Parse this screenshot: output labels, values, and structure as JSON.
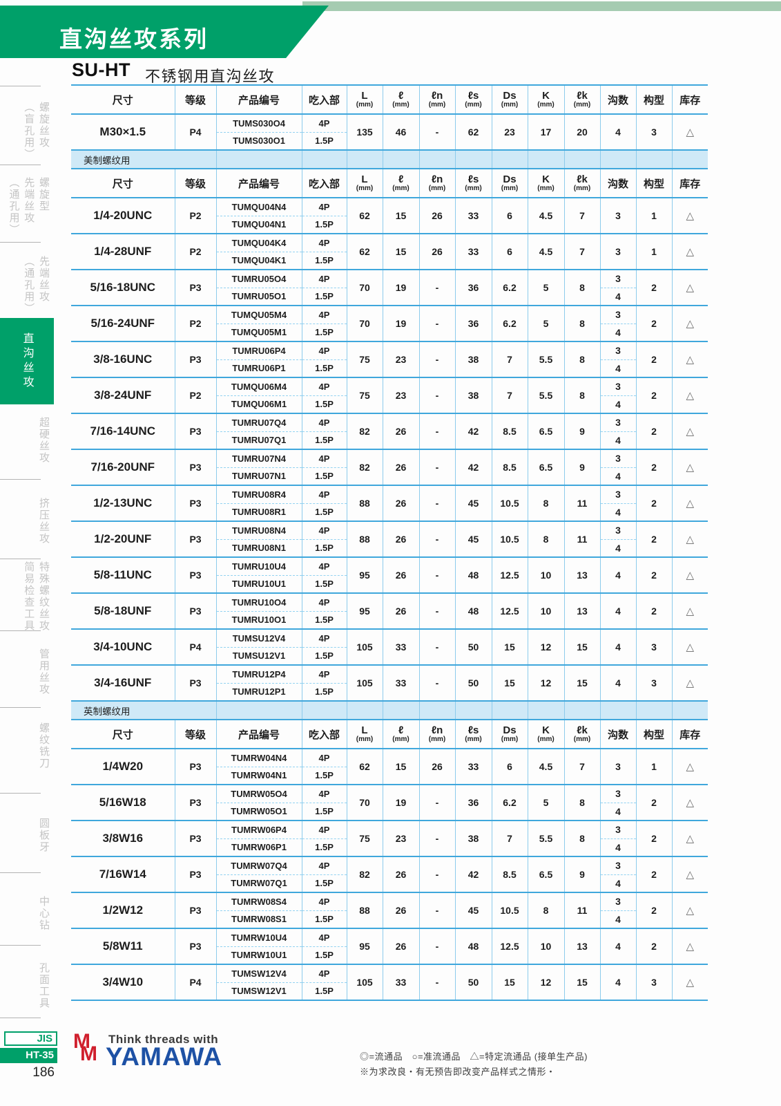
{
  "header": {
    "series_title": "直沟丝攻系列",
    "model_code": "SU-HT",
    "model_name": "不锈钢用直沟丝攻"
  },
  "sidebar": {
    "items": [
      {
        "id": "spiral-tap-blind",
        "lines": [
          "螺旋丝攻",
          "（盲孔用）"
        ],
        "active": false
      },
      {
        "id": "spiral-point-tap",
        "lines": [
          "螺旋型",
          "先端丝攻",
          "（通孔用）"
        ],
        "active": false
      },
      {
        "id": "point-tap",
        "lines": [
          "先端丝攻",
          "（通孔用）"
        ],
        "active": false
      },
      {
        "id": "straight-flute-tap",
        "lines": [
          "直沟丝攻"
        ],
        "active": true
      },
      {
        "id": "carbide-tap",
        "lines": [
          "超硬丝攻"
        ],
        "active": false
      },
      {
        "id": "forming-tap",
        "lines": [
          "挤压丝攻"
        ],
        "active": false
      },
      {
        "id": "special-thread-tools",
        "lines": [
          "特殊螺纹丝攻",
          "简易检查工具"
        ],
        "active": false
      },
      {
        "id": "pipe-tap",
        "lines": [
          "管用丝攻"
        ],
        "active": false
      },
      {
        "id": "thread-mill",
        "lines": [
          "螺纹铣刀"
        ],
        "active": false
      },
      {
        "id": "round-die",
        "lines": [
          "圆板牙"
        ],
        "active": false
      },
      {
        "id": "center-drill",
        "lines": [
          "中心钻"
        ],
        "active": false
      },
      {
        "id": "hole-tools",
        "lines": [
          "孔面工具"
        ],
        "active": false
      }
    ],
    "jis_label": "JIS",
    "ht_label": "HT-35",
    "page_number": "186"
  },
  "table": {
    "headers": {
      "size": "尺寸",
      "grade": "等级",
      "part_no": "产品编号",
      "chamfer": "吃入部",
      "dims": [
        {
          "sym": "L",
          "unit": "(mm)"
        },
        {
          "sym": "ℓ",
          "unit": "(mm)"
        },
        {
          "sym": "ℓn",
          "unit": "(mm)"
        },
        {
          "sym": "ℓs",
          "unit": "(mm)"
        },
        {
          "sym": "Ds",
          "unit": "(mm)"
        },
        {
          "sym": "K",
          "unit": "(mm)"
        },
        {
          "sym": "ℓk",
          "unit": "(mm)"
        }
      ],
      "flutes": "沟数",
      "form": "构型",
      "stock": "库存"
    },
    "sections": [
      {
        "band": null,
        "rows": [
          {
            "size": "M30×1.5",
            "grade": "P4",
            "codes": [
              "TUMS030O4",
              "TUMS030O1"
            ],
            "chamfer": [
              "4P",
              "1.5P"
            ],
            "dims": [
              "135",
              "46",
              "-",
              "62",
              "23",
              "17",
              "20"
            ],
            "flutes": [
              "4"
            ],
            "form": "3",
            "stock": "△"
          }
        ]
      },
      {
        "band": "美制螺纹用",
        "rows": [
          {
            "size": "1/4-20UNC",
            "grade": "P2",
            "codes": [
              "TUMQU04N4",
              "TUMQU04N1"
            ],
            "chamfer": [
              "4P",
              "1.5P"
            ],
            "dims": [
              "62",
              "15",
              "26",
              "33",
              "6",
              "4.5",
              "7"
            ],
            "flutes": [
              "3"
            ],
            "form": "1",
            "stock": "△"
          },
          {
            "size": "1/4-28UNF",
            "grade": "P2",
            "codes": [
              "TUMQU04K4",
              "TUMQU04K1"
            ],
            "chamfer": [
              "4P",
              "1.5P"
            ],
            "dims": [
              "62",
              "15",
              "26",
              "33",
              "6",
              "4.5",
              "7"
            ],
            "flutes": [
              "3"
            ],
            "form": "1",
            "stock": "△"
          },
          {
            "size": "5/16-18UNC",
            "grade": "P3",
            "codes": [
              "TUMRU05O4",
              "TUMRU05O1"
            ],
            "chamfer": [
              "4P",
              "1.5P"
            ],
            "dims": [
              "70",
              "19",
              "-",
              "36",
              "6.2",
              "5",
              "8"
            ],
            "flutes": [
              "3",
              "4"
            ],
            "form": "2",
            "stock": "△"
          },
          {
            "size": "5/16-24UNF",
            "grade": "P2",
            "codes": [
              "TUMQU05M4",
              "TUMQU05M1"
            ],
            "chamfer": [
              "4P",
              "1.5P"
            ],
            "dims": [
              "70",
              "19",
              "-",
              "36",
              "6.2",
              "5",
              "8"
            ],
            "flutes": [
              "3",
              "4"
            ],
            "form": "2",
            "stock": "△"
          },
          {
            "size": "3/8-16UNC",
            "grade": "P3",
            "codes": [
              "TUMRU06P4",
              "TUMRU06P1"
            ],
            "chamfer": [
              "4P",
              "1.5P"
            ],
            "dims": [
              "75",
              "23",
              "-",
              "38",
              "7",
              "5.5",
              "8"
            ],
            "flutes": [
              "3",
              "4"
            ],
            "form": "2",
            "stock": "△"
          },
          {
            "size": "3/8-24UNF",
            "grade": "P2",
            "codes": [
              "TUMQU06M4",
              "TUMQU06M1"
            ],
            "chamfer": [
              "4P",
              "1.5P"
            ],
            "dims": [
              "75",
              "23",
              "-",
              "38",
              "7",
              "5.5",
              "8"
            ],
            "flutes": [
              "3",
              "4"
            ],
            "form": "2",
            "stock": "△"
          },
          {
            "size": "7/16-14UNC",
            "grade": "P3",
            "codes": [
              "TUMRU07Q4",
              "TUMRU07Q1"
            ],
            "chamfer": [
              "4P",
              "1.5P"
            ],
            "dims": [
              "82",
              "26",
              "-",
              "42",
              "8.5",
              "6.5",
              "9"
            ],
            "flutes": [
              "3",
              "4"
            ],
            "form": "2",
            "stock": "△"
          },
          {
            "size": "7/16-20UNF",
            "grade": "P3",
            "codes": [
              "TUMRU07N4",
              "TUMRU07N1"
            ],
            "chamfer": [
              "4P",
              "1.5P"
            ],
            "dims": [
              "82",
              "26",
              "-",
              "42",
              "8.5",
              "6.5",
              "9"
            ],
            "flutes": [
              "3",
              "4"
            ],
            "form": "2",
            "stock": "△"
          },
          {
            "size": "1/2-13UNC",
            "grade": "P3",
            "codes": [
              "TUMRU08R4",
              "TUMRU08R1"
            ],
            "chamfer": [
              "4P",
              "1.5P"
            ],
            "dims": [
              "88",
              "26",
              "-",
              "45",
              "10.5",
              "8",
              "11"
            ],
            "flutes": [
              "3",
              "4"
            ],
            "form": "2",
            "stock": "△"
          },
          {
            "size": "1/2-20UNF",
            "grade": "P3",
            "codes": [
              "TUMRU08N4",
              "TUMRU08N1"
            ],
            "chamfer": [
              "4P",
              "1.5P"
            ],
            "dims": [
              "88",
              "26",
              "-",
              "45",
              "10.5",
              "8",
              "11"
            ],
            "flutes": [
              "3",
              "4"
            ],
            "form": "2",
            "stock": "△"
          },
          {
            "size": "5/8-11UNC",
            "grade": "P3",
            "codes": [
              "TUMRU10U4",
              "TUMRU10U1"
            ],
            "chamfer": [
              "4P",
              "1.5P"
            ],
            "dims": [
              "95",
              "26",
              "-",
              "48",
              "12.5",
              "10",
              "13"
            ],
            "flutes": [
              "4"
            ],
            "form": "2",
            "stock": "△"
          },
          {
            "size": "5/8-18UNF",
            "grade": "P3",
            "codes": [
              "TUMRU10O4",
              "TUMRU10O1"
            ],
            "chamfer": [
              "4P",
              "1.5P"
            ],
            "dims": [
              "95",
              "26",
              "-",
              "48",
              "12.5",
              "10",
              "13"
            ],
            "flutes": [
              "4"
            ],
            "form": "2",
            "stock": "△"
          },
          {
            "size": "3/4-10UNC",
            "grade": "P4",
            "codes": [
              "TUMSU12V4",
              "TUMSU12V1"
            ],
            "chamfer": [
              "4P",
              "1.5P"
            ],
            "dims": [
              "105",
              "33",
              "-",
              "50",
              "15",
              "12",
              "15"
            ],
            "flutes": [
              "4"
            ],
            "form": "3",
            "stock": "△"
          },
          {
            "size": "3/4-16UNF",
            "grade": "P3",
            "codes": [
              "TUMRU12P4",
              "TUMRU12P1"
            ],
            "chamfer": [
              "4P",
              "1.5P"
            ],
            "dims": [
              "105",
              "33",
              "-",
              "50",
              "15",
              "12",
              "15"
            ],
            "flutes": [
              "4"
            ],
            "form": "3",
            "stock": "△"
          }
        ]
      },
      {
        "band": "英制螺纹用",
        "rows": [
          {
            "size": "1/4W20",
            "grade": "P3",
            "codes": [
              "TUMRW04N4",
              "TUMRW04N1"
            ],
            "chamfer": [
              "4P",
              "1.5P"
            ],
            "dims": [
              "62",
              "15",
              "26",
              "33",
              "6",
              "4.5",
              "7"
            ],
            "flutes": [
              "3"
            ],
            "form": "1",
            "stock": "△"
          },
          {
            "size": "5/16W18",
            "grade": "P3",
            "codes": [
              "TUMRW05O4",
              "TUMRW05O1"
            ],
            "chamfer": [
              "4P",
              "1.5P"
            ],
            "dims": [
              "70",
              "19",
              "-",
              "36",
              "6.2",
              "5",
              "8"
            ],
            "flutes": [
              "3",
              "4"
            ],
            "form": "2",
            "stock": "△"
          },
          {
            "size": "3/8W16",
            "grade": "P3",
            "codes": [
              "TUMRW06P4",
              "TUMRW06P1"
            ],
            "chamfer": [
              "4P",
              "1.5P"
            ],
            "dims": [
              "75",
              "23",
              "-",
              "38",
              "7",
              "5.5",
              "8"
            ],
            "flutes": [
              "3",
              "4"
            ],
            "form": "2",
            "stock": "△"
          },
          {
            "size": "7/16W14",
            "grade": "P3",
            "codes": [
              "TUMRW07Q4",
              "TUMRW07Q1"
            ],
            "chamfer": [
              "4P",
              "1.5P"
            ],
            "dims": [
              "82",
              "26",
              "-",
              "42",
              "8.5",
              "6.5",
              "9"
            ],
            "flutes": [
              "3",
              "4"
            ],
            "form": "2",
            "stock": "△"
          },
          {
            "size": "1/2W12",
            "grade": "P3",
            "codes": [
              "TUMRW08S4",
              "TUMRW08S1"
            ],
            "chamfer": [
              "4P",
              "1.5P"
            ],
            "dims": [
              "88",
              "26",
              "-",
              "45",
              "10.5",
              "8",
              "11"
            ],
            "flutes": [
              "3",
              "4"
            ],
            "form": "2",
            "stock": "△"
          },
          {
            "size": "5/8W11",
            "grade": "P3",
            "codes": [
              "TUMRW10U4",
              "TUMRW10U1"
            ],
            "chamfer": [
              "4P",
              "1.5P"
            ],
            "dims": [
              "95",
              "26",
              "-",
              "48",
              "12.5",
              "10",
              "13"
            ],
            "flutes": [
              "4"
            ],
            "form": "2",
            "stock": "△"
          },
          {
            "size": "3/4W10",
            "grade": "P4",
            "codes": [
              "TUMSW12V4",
              "TUMSW12V1"
            ],
            "chamfer": [
              "4P",
              "1.5P"
            ],
            "dims": [
              "105",
              "33",
              "-",
              "50",
              "15",
              "12",
              "15"
            ],
            "flutes": [
              "4"
            ],
            "form": "3",
            "stock": "△"
          }
        ]
      }
    ]
  },
  "footer": {
    "tagline": "Think threads with",
    "brand": "YAMAWA",
    "legend": "◎=流通品　○=准流通品　△=特定流通品 (接单生产品)",
    "note": "※为求改良‧有无预告即改变产品样式之情形‧"
  },
  "colors": {
    "header_green": "#00a069",
    "sage_strip": "#a5cbb1",
    "band_blue": "#cfe9f7",
    "rule_blue": "#3fa7dc",
    "grid_blue": "#8ccbec",
    "logo_red": "#d0202e",
    "logo_blue": "#1d51a5"
  }
}
